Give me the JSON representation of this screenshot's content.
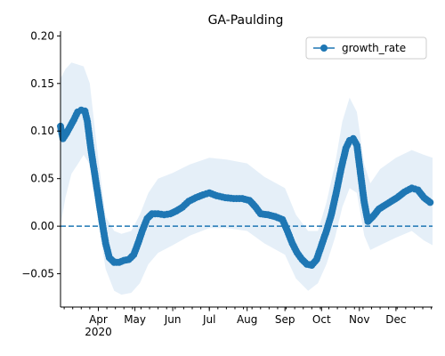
{
  "chart_data": {
    "type": "line",
    "title": "GA-Paulding",
    "xlabel": "",
    "ylabel": "",
    "x_axis_type": "date",
    "xlim": [
      "2020-03-01",
      "2020-12-31"
    ],
    "ylim": [
      -0.085,
      0.205
    ],
    "y_ticks": [
      -0.05,
      0.0,
      0.05,
      0.1,
      0.15,
      0.2
    ],
    "y_tick_labels": [
      "−0.05",
      "0.00",
      "0.05",
      "0.10",
      "0.15",
      "0.20"
    ],
    "x_major_ticks": [
      {
        "date": "2020-04-01",
        "label": "Apr",
        "sublabel": "2020"
      },
      {
        "date": "2020-05-01",
        "label": "May"
      },
      {
        "date": "2020-06-01",
        "label": "Jun"
      },
      {
        "date": "2020-07-01",
        "label": "Jul"
      },
      {
        "date": "2020-08-01",
        "label": "Aug"
      },
      {
        "date": "2020-09-01",
        "label": "Sep"
      },
      {
        "date": "2020-10-01",
        "label": "Oct"
      },
      {
        "date": "2020-11-01",
        "label": "Nov"
      },
      {
        "date": "2020-12-01",
        "label": "Dec"
      }
    ],
    "grid": false,
    "legend": {
      "position": "top-right",
      "entries": [
        "growth_rate"
      ]
    },
    "reference_line": {
      "y": 0.0,
      "style": "dashed",
      "color": "#1f77b4"
    },
    "colors": {
      "series": "#1f77b4",
      "band": "#dce9f5"
    },
    "series": [
      {
        "name": "growth_rate",
        "marker": "circle",
        "points": [
          [
            "2020-03-01",
            0.105
          ],
          [
            "2020-03-03",
            0.092
          ],
          [
            "2020-03-06",
            0.098
          ],
          [
            "2020-03-09",
            0.105
          ],
          [
            "2020-03-12",
            0.112
          ],
          [
            "2020-03-15",
            0.12
          ],
          [
            "2020-03-18",
            0.122
          ],
          [
            "2020-03-21",
            0.121
          ],
          [
            "2020-03-23",
            0.11
          ],
          [
            "2020-03-26",
            0.08
          ],
          [
            "2020-03-29",
            0.055
          ],
          [
            "2020-04-01",
            0.03
          ],
          [
            "2020-04-04",
            0.005
          ],
          [
            "2020-04-07",
            -0.018
          ],
          [
            "2020-04-10",
            -0.033
          ],
          [
            "2020-04-14",
            -0.038
          ],
          [
            "2020-04-18",
            -0.038
          ],
          [
            "2020-04-22",
            -0.036
          ],
          [
            "2020-04-26",
            -0.035
          ],
          [
            "2020-04-30",
            -0.03
          ],
          [
            "2020-05-03",
            -0.02
          ],
          [
            "2020-05-07",
            -0.005
          ],
          [
            "2020-05-11",
            0.008
          ],
          [
            "2020-05-15",
            0.013
          ],
          [
            "2020-05-20",
            0.013
          ],
          [
            "2020-05-25",
            0.012
          ],
          [
            "2020-05-30",
            0.013
          ],
          [
            "2020-06-04",
            0.016
          ],
          [
            "2020-06-09",
            0.02
          ],
          [
            "2020-06-14",
            0.026
          ],
          [
            "2020-06-20",
            0.03
          ],
          [
            "2020-06-26",
            0.033
          ],
          [
            "2020-07-01",
            0.035
          ],
          [
            "2020-07-07",
            0.032
          ],
          [
            "2020-07-14",
            0.03
          ],
          [
            "2020-07-21",
            0.029
          ],
          [
            "2020-07-28",
            0.029
          ],
          [
            "2020-08-03",
            0.027
          ],
          [
            "2020-08-08",
            0.02
          ],
          [
            "2020-08-12",
            0.013
          ],
          [
            "2020-08-18",
            0.012
          ],
          [
            "2020-08-24",
            0.01
          ],
          [
            "2020-08-30",
            0.007
          ],
          [
            "2020-09-03",
            -0.005
          ],
          [
            "2020-09-07",
            -0.018
          ],
          [
            "2020-09-11",
            -0.028
          ],
          [
            "2020-09-15",
            -0.035
          ],
          [
            "2020-09-19",
            -0.04
          ],
          [
            "2020-09-23",
            -0.041
          ],
          [
            "2020-09-27",
            -0.035
          ],
          [
            "2020-10-01",
            -0.02
          ],
          [
            "2020-10-05",
            -0.005
          ],
          [
            "2020-10-09",
            0.012
          ],
          [
            "2020-10-13",
            0.035
          ],
          [
            "2020-10-17",
            0.06
          ],
          [
            "2020-10-21",
            0.082
          ],
          [
            "2020-10-24",
            0.09
          ],
          [
            "2020-10-27",
            0.092
          ],
          [
            "2020-10-30",
            0.085
          ],
          [
            "2020-11-02",
            0.055
          ],
          [
            "2020-11-05",
            0.025
          ],
          [
            "2020-11-08",
            0.005
          ],
          [
            "2020-11-12",
            0.01
          ],
          [
            "2020-11-17",
            0.018
          ],
          [
            "2020-11-22",
            0.022
          ],
          [
            "2020-11-27",
            0.026
          ],
          [
            "2020-12-02",
            0.03
          ],
          [
            "2020-12-08",
            0.036
          ],
          [
            "2020-12-14",
            0.04
          ],
          [
            "2020-12-19",
            0.038
          ],
          [
            "2020-12-24",
            0.03
          ],
          [
            "2020-12-29",
            0.025
          ]
        ],
        "band": [
          [
            "2020-03-01",
            0.0,
            0.155
          ],
          [
            "2020-03-05",
            0.03,
            0.165
          ],
          [
            "2020-03-10",
            0.055,
            0.172
          ],
          [
            "2020-03-15",
            0.065,
            0.17
          ],
          [
            "2020-03-20",
            0.075,
            0.168
          ],
          [
            "2020-03-25",
            0.065,
            0.15
          ],
          [
            "2020-04-01",
            0.005,
            0.07
          ],
          [
            "2020-04-07",
            -0.045,
            0.01
          ],
          [
            "2020-04-14",
            -0.068,
            -0.005
          ],
          [
            "2020-04-20",
            -0.072,
            -0.008
          ],
          [
            "2020-04-28",
            -0.07,
            -0.005
          ],
          [
            "2020-05-05",
            -0.06,
            0.012
          ],
          [
            "2020-05-12",
            -0.04,
            0.035
          ],
          [
            "2020-05-20",
            -0.028,
            0.05
          ],
          [
            "2020-06-01",
            -0.02,
            0.056
          ],
          [
            "2020-06-15",
            -0.01,
            0.065
          ],
          [
            "2020-07-01",
            -0.002,
            0.072
          ],
          [
            "2020-07-15",
            -0.002,
            0.07
          ],
          [
            "2020-08-01",
            -0.005,
            0.066
          ],
          [
            "2020-08-15",
            -0.018,
            0.052
          ],
          [
            "2020-09-01",
            -0.03,
            0.04
          ],
          [
            "2020-09-10",
            -0.055,
            0.012
          ],
          [
            "2020-09-20",
            -0.068,
            -0.005
          ],
          [
            "2020-09-28",
            -0.06,
            -0.005
          ],
          [
            "2020-10-05",
            -0.04,
            0.025
          ],
          [
            "2020-10-12",
            -0.012,
            0.065
          ],
          [
            "2020-10-18",
            0.02,
            0.11
          ],
          [
            "2020-10-24",
            0.04,
            0.135
          ],
          [
            "2020-10-30",
            0.035,
            0.12
          ],
          [
            "2020-11-05",
            -0.01,
            0.065
          ],
          [
            "2020-11-10",
            -0.025,
            0.045
          ],
          [
            "2020-11-18",
            -0.02,
            0.06
          ],
          [
            "2020-12-01",
            -0.012,
            0.072
          ],
          [
            "2020-12-14",
            -0.005,
            0.08
          ],
          [
            "2020-12-24",
            -0.015,
            0.075
          ],
          [
            "2020-12-31",
            -0.02,
            0.072
          ]
        ]
      }
    ]
  }
}
